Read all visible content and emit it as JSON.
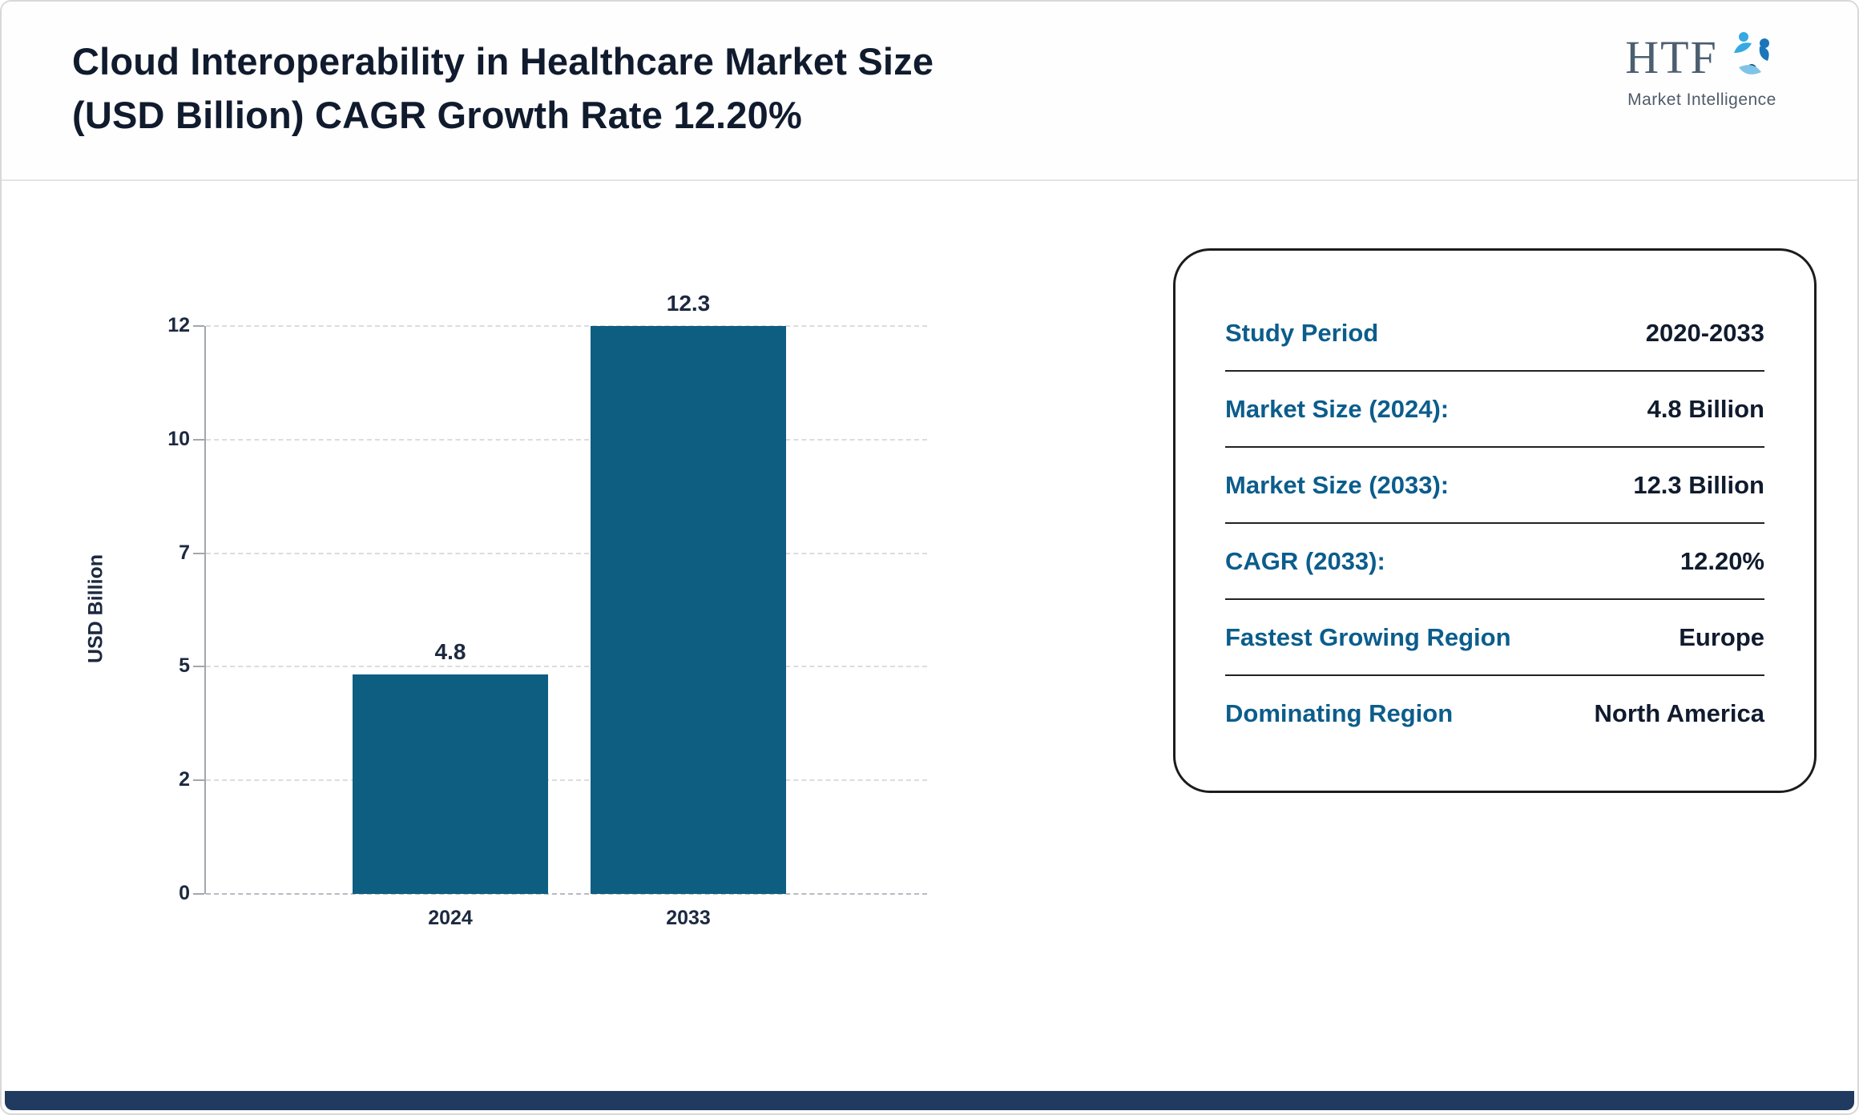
{
  "page": {
    "title_line1": "Cloud Interoperability in Healthcare Market Size",
    "title_line2": "(USD Billion) CAGR Growth Rate 12.20%",
    "logo": {
      "text": "HTF",
      "subtext": "Market Intelligence"
    }
  },
  "chart_data": {
    "type": "bar",
    "categories": [
      "2024",
      "2033"
    ],
    "values": [
      4.8,
      12.3
    ],
    "value_labels": [
      "4.8",
      "12.3"
    ],
    "title": "",
    "xlabel": "",
    "ylabel": "USD Billion",
    "yticks": [
      0,
      2,
      5,
      7,
      10,
      12
    ],
    "ylim": [
      0,
      12
    ],
    "grid": "dashed-horizontal",
    "legend": "none",
    "bar_color": "#0e5e81"
  },
  "info_card": {
    "rows": [
      {
        "label": "Study Period",
        "value": "2020-2033"
      },
      {
        "label": "Market Size (2024):",
        "value": "4.8 Billion"
      },
      {
        "label": "Market Size (2033):",
        "value": "12.3 Billion"
      },
      {
        "label": "CAGR (2033):",
        "value": "12.20%"
      },
      {
        "label": "Fastest Growing Region",
        "value": "Europe"
      },
      {
        "label": "Dominating Region",
        "value": "North America"
      }
    ]
  }
}
